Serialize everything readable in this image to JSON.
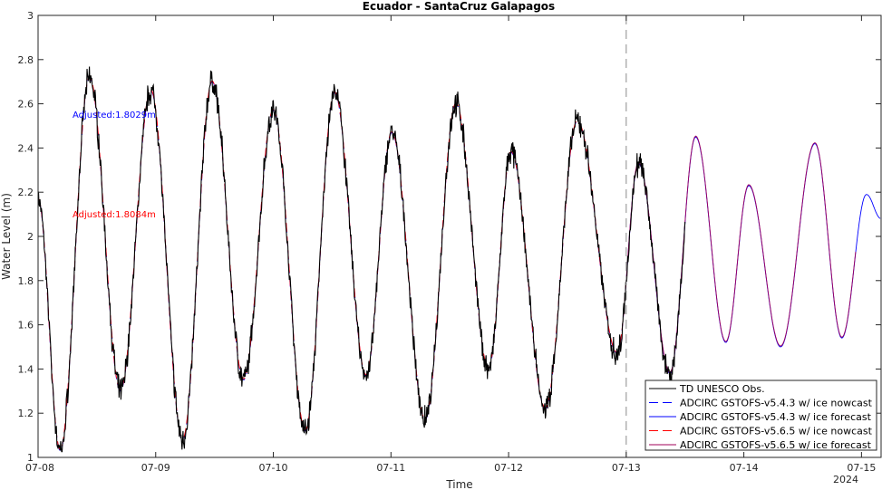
{
  "chart_data": {
    "type": "line",
    "title": "Ecuador - SantaCruz Galapagos",
    "xlabel": "Time",
    "ylabel": "Water Level (m)",
    "x_unit": "days",
    "xlim": [
      "07-08",
      "07-15 04:00"
    ],
    "ylim": [
      1,
      3
    ],
    "x_ticks": [
      {
        "x": "07-08",
        "label": "07-08"
      },
      {
        "x": "07-09",
        "label": "07-09"
      },
      {
        "x": "07-10",
        "label": "07-10"
      },
      {
        "x": "07-11",
        "label": "07-11"
      },
      {
        "x": "07-12",
        "label": "07-12"
      },
      {
        "x": "07-13",
        "label": "07-13"
      },
      {
        "x": "07-14",
        "label": "07-14"
      },
      {
        "x": "07-15",
        "label": "07-15"
      }
    ],
    "x_year_label": "2024",
    "y_ticks": [
      1,
      1.2,
      1.4,
      1.6,
      1.8,
      2,
      2.2,
      2.4,
      2.6,
      2.8,
      3
    ],
    "grid": false,
    "nowcast_forecast_divider": "07-13",
    "legend_position": "bottom-right",
    "annotations": [
      {
        "text": "Adjusted:1.8029m",
        "color": "#0000ff"
      },
      {
        "text": "Adjusted:1.8084m",
        "color": "#ff0000"
      }
    ],
    "tide_extrema": [
      {
        "x": "07-08 00:00",
        "y": 2.17
      },
      {
        "x": "07-08 04:30",
        "y": 1.03
      },
      {
        "x": "07-08 10:30",
        "y": 2.72
      },
      {
        "x": "07-08 16:48",
        "y": 1.3
      },
      {
        "x": "07-08 23:00",
        "y": 2.66
      },
      {
        "x": "07-09 05:30",
        "y": 1.08
      },
      {
        "x": "07-09 11:30",
        "y": 2.7
      },
      {
        "x": "07-09 17:55",
        "y": 1.35
      },
      {
        "x": "07-10 00:00",
        "y": 2.57
      },
      {
        "x": "07-10 06:30",
        "y": 1.12
      },
      {
        "x": "07-10 12:30",
        "y": 2.65
      },
      {
        "x": "07-10 18:55",
        "y": 1.37
      },
      {
        "x": "07-11 00:10",
        "y": 2.47
      },
      {
        "x": "07-11 07:00",
        "y": 1.17
      },
      {
        "x": "07-11 13:15",
        "y": 2.6
      },
      {
        "x": "07-11 19:55",
        "y": 1.4
      },
      {
        "x": "07-12 00:30",
        "y": 2.38
      },
      {
        "x": "07-12 07:30",
        "y": 1.22
      },
      {
        "x": "07-12 14:00",
        "y": 2.52
      },
      {
        "x": "07-12 22:10",
        "y": 1.47
      },
      {
        "x": "07-13 02:30",
        "y": 2.33
      },
      {
        "x": "07-13 08:55",
        "y": 1.38
      },
      {
        "x": "07-13 14:10",
        "y": 2.45
      },
      {
        "x": "07-13 20:20",
        "y": 1.52
      },
      {
        "x": "07-14 01:00",
        "y": 2.23
      },
      {
        "x": "07-14 07:30",
        "y": 1.5
      },
      {
        "x": "07-14 14:30",
        "y": 2.42
      },
      {
        "x": "07-14 20:00",
        "y": 1.54
      },
      {
        "x": "07-15 01:00",
        "y": 2.19
      },
      {
        "x": "07-15 04:00",
        "y": 2.08
      }
    ],
    "series": [
      {
        "name": "TD UNESCO Obs.",
        "color": "#000000",
        "style": "solid",
        "x_range": [
          "07-08",
          "07-13 12:00"
        ]
      },
      {
        "name": "ADCIRC GSTOFS-v5.4.3 w/ ice nowcast",
        "color": "#0000ff",
        "style": "dashed",
        "x_range": [
          "07-08",
          "07-13"
        ]
      },
      {
        "name": "ADCIRC GSTOFS-v5.4.3 w/ ice forecast",
        "color": "#0000ff",
        "style": "solid",
        "x_range": [
          "07-13",
          "07-15 04:00"
        ]
      },
      {
        "name": "ADCIRC GSTOFS-v5.6.5 w/ ice nowcast",
        "color": "#ff0000",
        "style": "dashed",
        "x_range": [
          "07-08",
          "07-13"
        ]
      },
      {
        "name": "ADCIRC GSTOFS-v5.6.5 w/ ice forecast",
        "color": "#a0005a",
        "style": "solid",
        "x_range": [
          "07-13",
          "07-14 23:00"
        ]
      }
    ]
  }
}
